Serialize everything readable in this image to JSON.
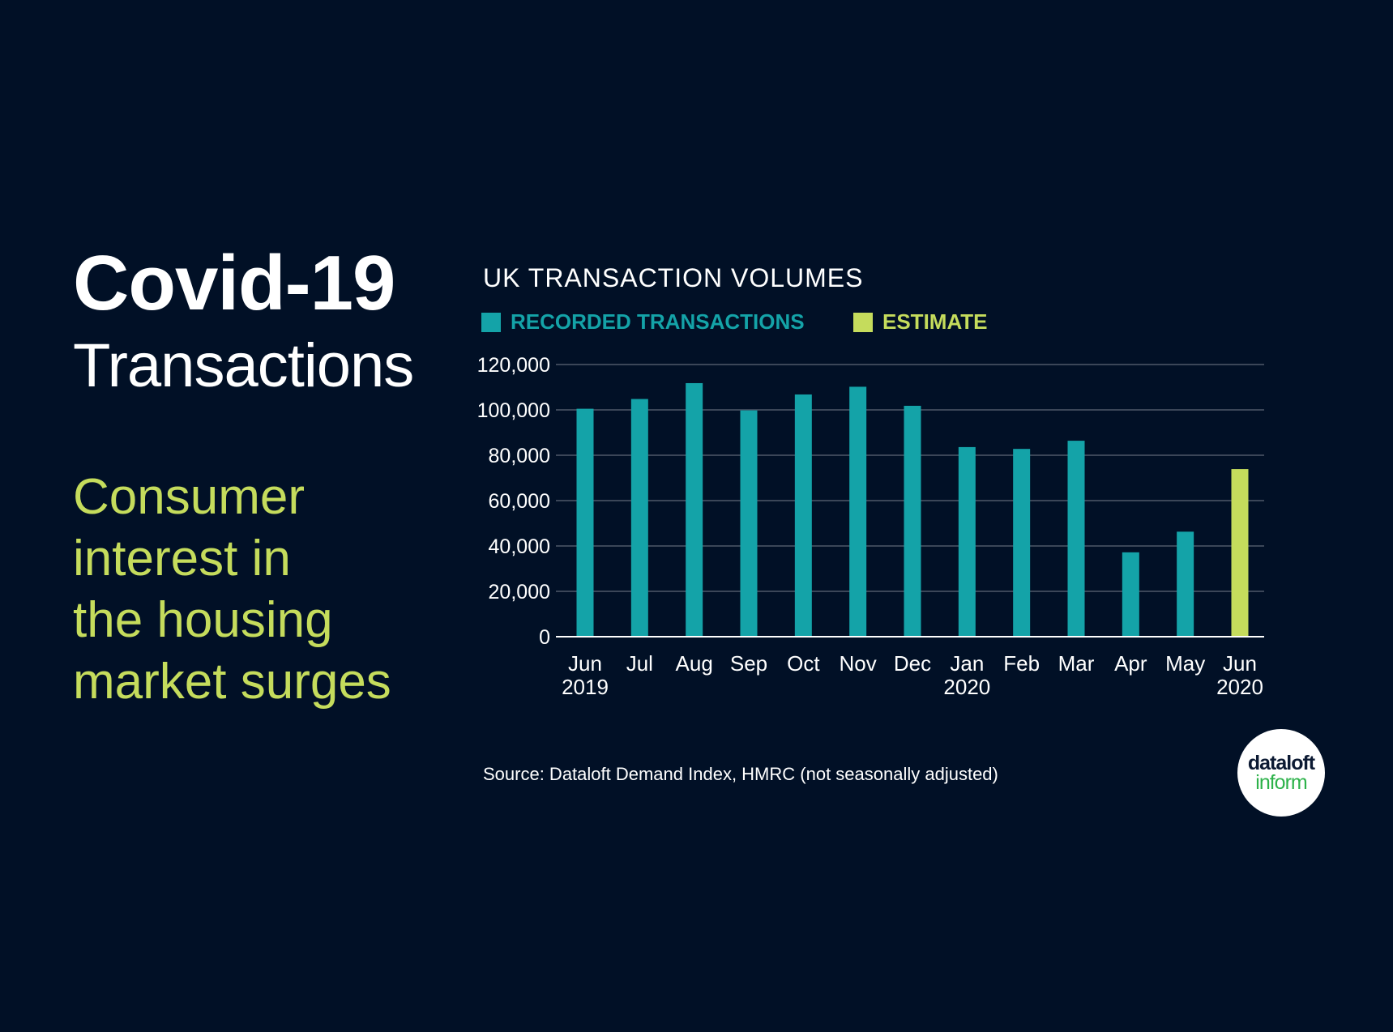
{
  "headline": {
    "title": "Covid-19",
    "subtitle": "Transactions",
    "tagline_lines": [
      "Consumer",
      "interest in",
      "the housing",
      "market surges"
    ]
  },
  "source": "Source: Dataloft Demand Index, HMRC (not seasonally adjusted)",
  "logo": {
    "line1": "dataloft",
    "line2": "inform"
  },
  "colors": {
    "background": "#011026",
    "recorded": "#14a3a8",
    "estimate": "#c5dc5c",
    "gridline": "#3b4658"
  },
  "chart_data": {
    "type": "bar",
    "title": "UK TRANSACTION VOLUMES",
    "categories": [
      [
        "Jun",
        "2019"
      ],
      [
        "Jul"
      ],
      [
        "Aug"
      ],
      [
        "Sep"
      ],
      [
        "Oct"
      ],
      [
        "Nov"
      ],
      [
        "Dec"
      ],
      [
        "Jan",
        "2020"
      ],
      [
        "Feb"
      ],
      [
        "Mar"
      ],
      [
        "Apr"
      ],
      [
        "May"
      ],
      [
        "Jun",
        "2020"
      ]
    ],
    "series": [
      {
        "name": "RECORDED TRANSACTIONS",
        "color": "#14a3a8",
        "values": [
          100500,
          104800,
          111800,
          99800,
          106800,
          110200,
          101800,
          83600,
          82800,
          86400,
          37200,
          46300,
          null
        ]
      },
      {
        "name": "ESTIMATE",
        "color": "#c5dc5c",
        "values": [
          null,
          null,
          null,
          null,
          null,
          null,
          null,
          null,
          null,
          null,
          null,
          null,
          73900
        ]
      }
    ],
    "yticks": [
      "0",
      "20,000",
      "40,000",
      "60,000",
      "80,000",
      "100,000",
      "120,000"
    ],
    "ylim": [
      0,
      120000
    ],
    "grid": true,
    "legend": "top-left"
  }
}
